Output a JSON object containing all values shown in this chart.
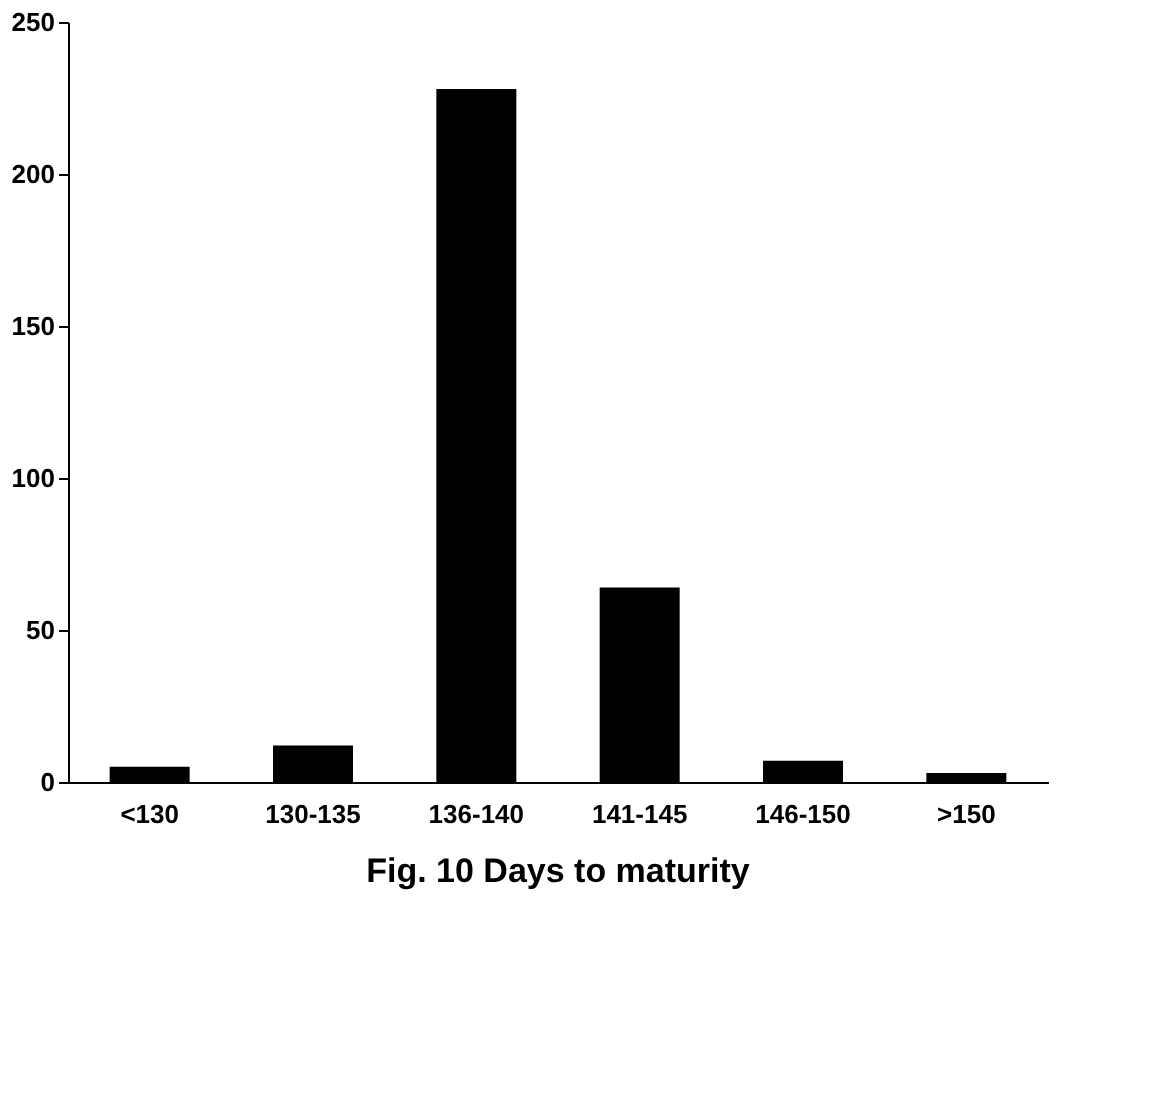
{
  "chart_data": {
    "type": "bar",
    "title": "Fig. 10   Days to maturity",
    "categories": [
      "<130",
      "130-135",
      "136-140",
      "141-145",
      "146-150",
      ">150"
    ],
    "values": [
      5,
      12,
      228,
      64,
      7,
      3
    ],
    "color": "#000000",
    "ylim": [
      0,
      250
    ],
    "yticks": [
      0,
      50,
      100,
      150,
      200,
      250
    ],
    "grid": false
  }
}
